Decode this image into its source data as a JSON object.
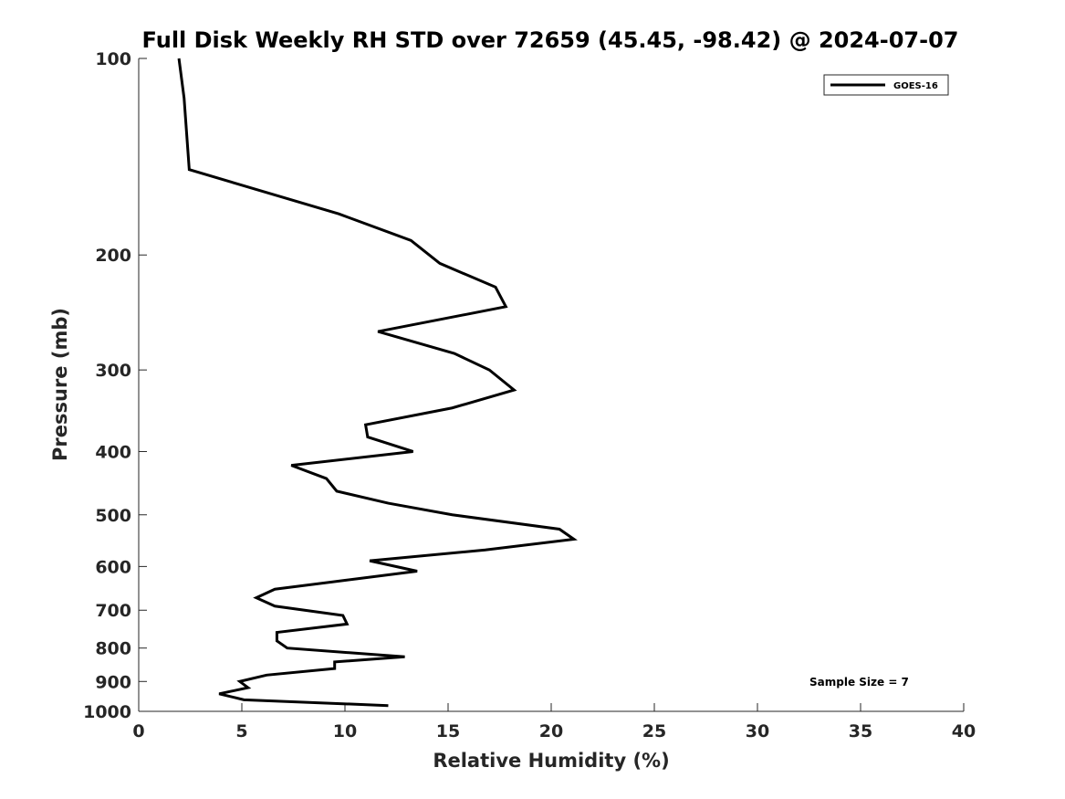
{
  "chart_data": {
    "type": "line",
    "title": "Full Disk Weekly RH STD over 72659 (45.45, -98.42) @ 2024-07-07",
    "xlabel": "Relative Humidity (%)",
    "ylabel": "Pressure (mb)",
    "xlim": [
      0,
      40
    ],
    "ylim": [
      100,
      1000
    ],
    "yscale": "log",
    "y_reversed": true,
    "x_ticks": [
      0,
      5,
      10,
      15,
      20,
      25,
      30,
      35,
      40
    ],
    "x_tick_labels": [
      "0",
      "5",
      "10",
      "15",
      "20",
      "25",
      "30",
      "35",
      "40"
    ],
    "y_ticks": [
      100,
      200,
      300,
      400,
      500,
      600,
      700,
      800,
      900,
      1000
    ],
    "y_tick_labels": [
      "100",
      "200",
      "300",
      "400",
      "500",
      "600",
      "700",
      "800",
      "900",
      "1000"
    ],
    "grid": false,
    "legend": {
      "position": "top-right",
      "entries": [
        "GOES-16"
      ]
    },
    "annotation": "Sample Size = 7",
    "series": [
      {
        "name": "GOES-16",
        "color": "#000000",
        "x": [
          1.95,
          2.2,
          2.45,
          9.7,
          13.2,
          14.6,
          17.3,
          17.8,
          11.6,
          15.3,
          17.0,
          18.2,
          15.2,
          11.0,
          11.1,
          13.3,
          7.4,
          9.1,
          9.6,
          12.1,
          15.2,
          20.4,
          21.1,
          16.8,
          11.2,
          13.5,
          10.0,
          6.6,
          5.7,
          6.6,
          9.9,
          10.1,
          6.7,
          6.7,
          7.2,
          12.9,
          9.5,
          9.5,
          6.2,
          4.9,
          5.3,
          3.9,
          5.1,
          12.1
        ],
        "y": [
          100,
          115,
          148,
          173,
          190,
          206,
          224,
          240,
          262,
          283,
          300,
          322,
          343,
          364,
          380,
          400,
          420,
          440,
          460,
          480,
          500,
          526,
          545,
          566,
          588,
          610,
          630,
          650,
          670,
          690,
          713,
          735,
          757,
          780,
          800,
          825,
          840,
          860,
          880,
          900,
          920,
          940,
          960,
          980
        ]
      }
    ]
  }
}
